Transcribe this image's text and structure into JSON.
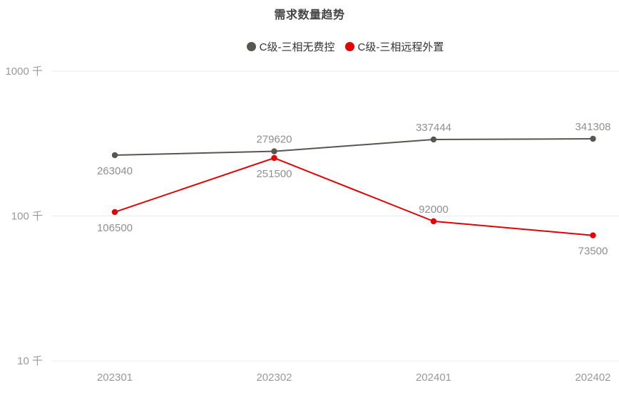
{
  "title": "需求数量趋势",
  "legend": {
    "items": [
      {
        "label": "C级-三相无费控",
        "color": "#595551"
      },
      {
        "label": "C级-三相远程外置",
        "color": "#e60000"
      }
    ]
  },
  "chart_data": {
    "type": "line",
    "title": "需求数量趋势",
    "x": [
      "202301",
      "202302",
      "202401",
      "202402"
    ],
    "series": [
      {
        "name": "C级-三相无费控",
        "color": "#595551",
        "values": [
          263040,
          279620,
          337444,
          341308
        ],
        "label_positions": [
          "below",
          "above",
          "above",
          "above"
        ]
      },
      {
        "name": "C级-三相远程外置",
        "color": "#e60000",
        "values": [
          106500,
          251500,
          92000,
          73500
        ],
        "label_positions": [
          "below",
          "below",
          "above",
          "below"
        ]
      }
    ],
    "xlabel": "",
    "ylabel": "",
    "yaxis": {
      "scale": "log",
      "ticks": [
        10000,
        100000,
        1000000
      ],
      "tick_labels": [
        "10 千",
        "100 千",
        "1000 千"
      ],
      "range": [
        10000,
        1000000
      ]
    },
    "grid": "horizontal-only",
    "legend_position": "top-center",
    "colors": {
      "grid": "#ececec",
      "axis_label": "#999999",
      "data_label": "#8f8f8f",
      "title": "#454545"
    }
  }
}
